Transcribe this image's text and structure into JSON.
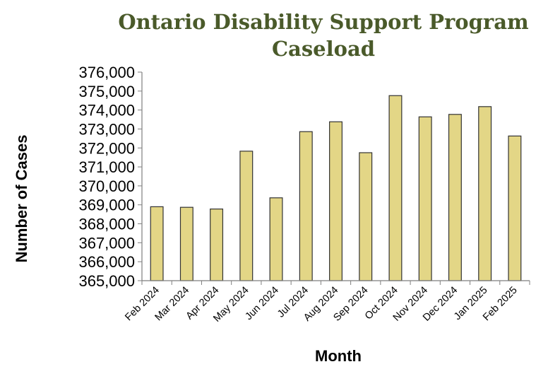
{
  "chart_data": {
    "type": "bar",
    "title": [
      "Ontario Disability Support Program",
      "Caseload"
    ],
    "xlabel": "Month",
    "ylabel": "Number of Cases",
    "ylim": [
      365000,
      376000
    ],
    "ytick_step": 1000,
    "yticks": [
      "365,000",
      "366,000",
      "367,000",
      "368,000",
      "369,000",
      "370,000",
      "371,000",
      "372,000",
      "373,000",
      "374,000",
      "375,000",
      "376,000"
    ],
    "categories": [
      "Feb 2024",
      "Mar 2024",
      "Apr 2024",
      "May 2024",
      "Jun 2024",
      "Jul 2024",
      "Aug 2024",
      "Sep 2024",
      "Oct 2024",
      "Nov 2024",
      "Dec 2024",
      "Jan 2025",
      "Feb 2025"
    ],
    "values": [
      368900,
      368870,
      368780,
      371830,
      369370,
      372860,
      373380,
      371750,
      374760,
      373640,
      373770,
      374180,
      372630
    ],
    "grid": false,
    "legend": "none",
    "colors": {
      "bar_fill": "#e3d686",
      "bar_stroke": "#333333",
      "title": "#4a5a2a",
      "axis": "#7f7f7f"
    }
  }
}
